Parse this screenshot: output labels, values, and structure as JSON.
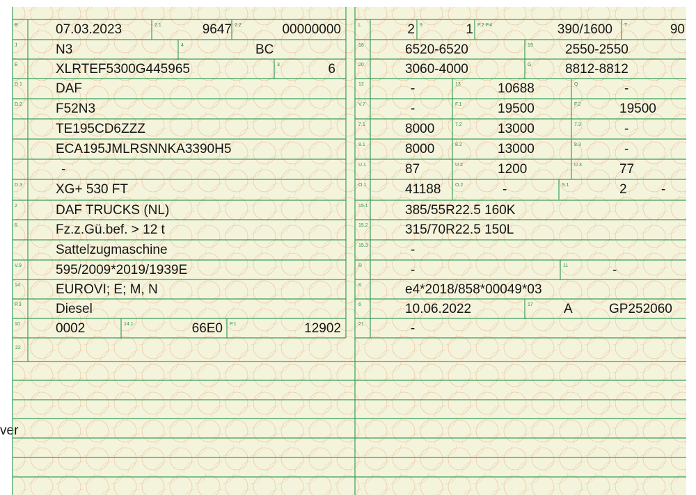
{
  "left_rows": [
    [
      "B",
      "07.03.2023",
      "2.1",
      "9647",
      "2.2",
      "00000000"
    ],
    [
      "J",
      "N3",
      "4",
      "BC"
    ],
    [
      "E",
      "XLRTEF5300G445965",
      "3",
      "6"
    ],
    [
      "D.1",
      "DAF"
    ],
    [
      "D.2",
      "F52N3",
      "TE195CD6ZZZ",
      "ECA195JMLRSNNKA3390H5",
      "-"
    ],
    [
      "D.3",
      "XG+ 530 FT"
    ],
    [
      "2",
      "DAF TRUCKS (NL)"
    ],
    [
      "5",
      "Fz.z.Gü.bef. > 12 t",
      "Sattelzugmaschine"
    ],
    [
      "V.9",
      "595/2009*2019/1939E"
    ],
    [
      "14",
      "EUROVI; E; M, N"
    ],
    [
      "P.3",
      "Diesel"
    ],
    [
      "10",
      "0002",
      "14.1",
      "66E0",
      "P.1",
      "12902"
    ]
  ],
  "right_rows": [
    [
      "L",
      "2",
      "9",
      "1",
      "P.2 P.4",
      "390/1600",
      "T",
      "90"
    ],
    [
      "18",
      "6520-6520",
      "19",
      "2550-2550"
    ],
    [
      "20",
      "3060-4000",
      "G",
      "8812-8812"
    ],
    [
      "12",
      "-",
      "13",
      "10688",
      "Q",
      "-"
    ],
    [
      "V.7",
      "-",
      "F.1",
      "19500",
      "F.2",
      "19500"
    ],
    [
      "7.1",
      "8000",
      "7.2",
      "13000",
      "7.3",
      "-"
    ],
    [
      "8.1",
      "8000",
      "8.2",
      "13000",
      "8.3",
      "-"
    ],
    [
      "U.1",
      "87",
      "U.2",
      "1200",
      "U.3",
      "77"
    ],
    [
      "O.1",
      "41188",
      "O.2",
      "-",
      "S.1",
      "2",
      "-"
    ],
    [
      "15.1",
      "385/55R22.5 160K"
    ],
    [
      "15.2",
      "315/70R22.5 150L"
    ],
    [
      "15.3",
      "-"
    ],
    [
      "R",
      "-",
      "11",
      "-"
    ],
    [
      "K",
      "e4*2018/858*00049*03"
    ],
    [
      "6",
      "10.06.2022",
      "17",
      "A",
      "GP252060"
    ],
    [
      "21",
      "-"
    ]
  ],
  "field_22": "22",
  "side_text": "ver"
}
